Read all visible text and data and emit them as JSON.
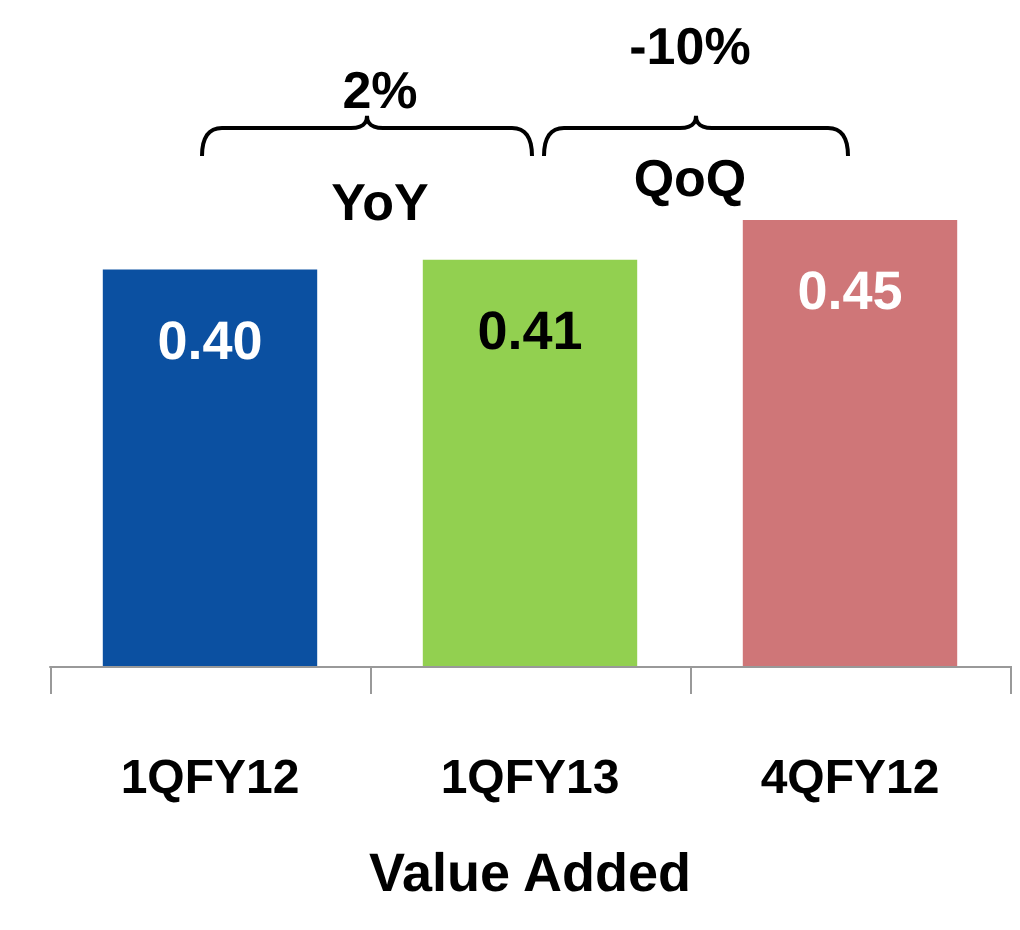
{
  "chart_data": {
    "type": "bar",
    "xlabel": "Value Added",
    "categories": [
      "1QFY12",
      "1QFY13",
      "4QFY12"
    ],
    "values": [
      0.4,
      0.41,
      0.45
    ],
    "colors": [
      "#0b50a1",
      "#92d050",
      "#cf7678"
    ],
    "value_labels": [
      "0.40",
      "0.41",
      "0.45"
    ],
    "annotations": [
      "2%",
      "YoY",
      "-10%",
      "QoQ"
    ]
  }
}
